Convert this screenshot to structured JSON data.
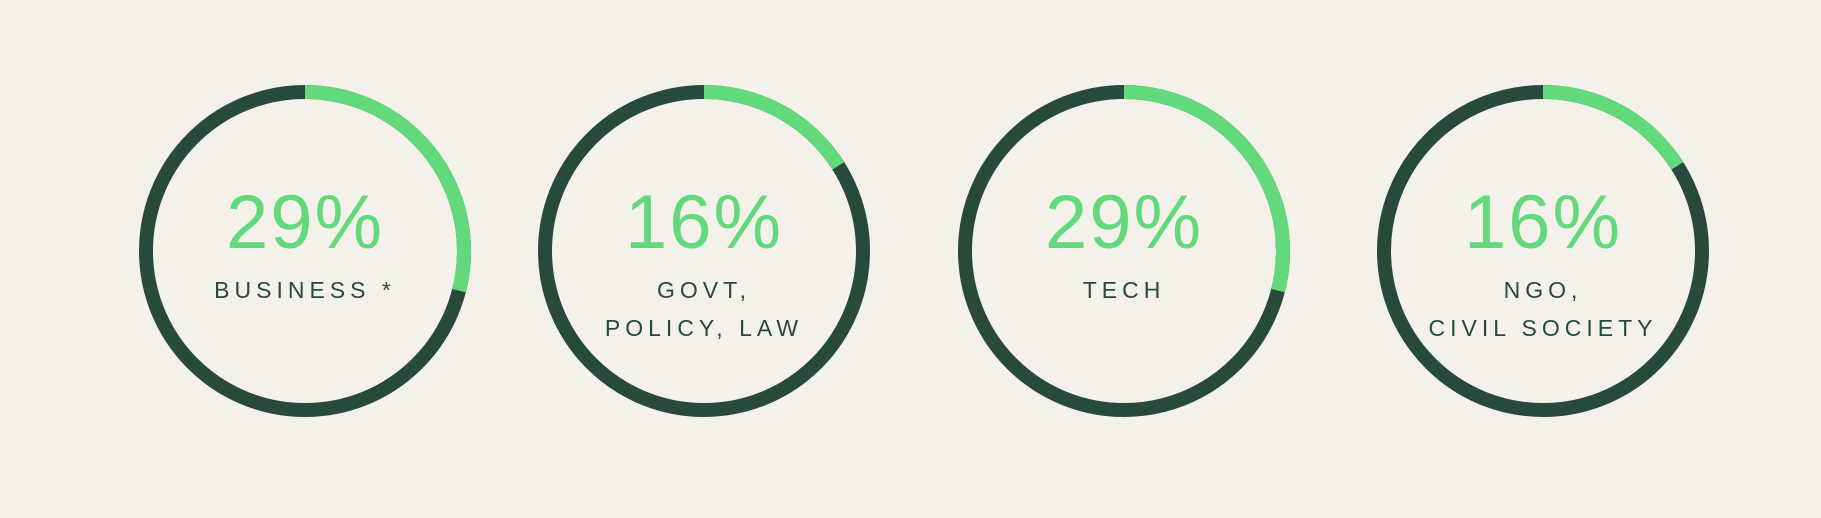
{
  "colors": {
    "background": "#f4f0ea",
    "track": "#284a3d",
    "accent": "#62d97b",
    "label": "#284a3d"
  },
  "chart_data": [
    {
      "type": "donut",
      "value": 29,
      "percent_label": "29%",
      "label": "BUSINESS *"
    },
    {
      "type": "donut",
      "value": 16,
      "percent_label": "16%",
      "label": "GOVT,\nPOLICY, LAW"
    },
    {
      "type": "donut",
      "value": 29,
      "percent_label": "29%",
      "label": "TECH"
    },
    {
      "type": "donut",
      "value": 16,
      "percent_label": "16%",
      "label": "NGO,\nCIVIL SOCIETY"
    }
  ]
}
